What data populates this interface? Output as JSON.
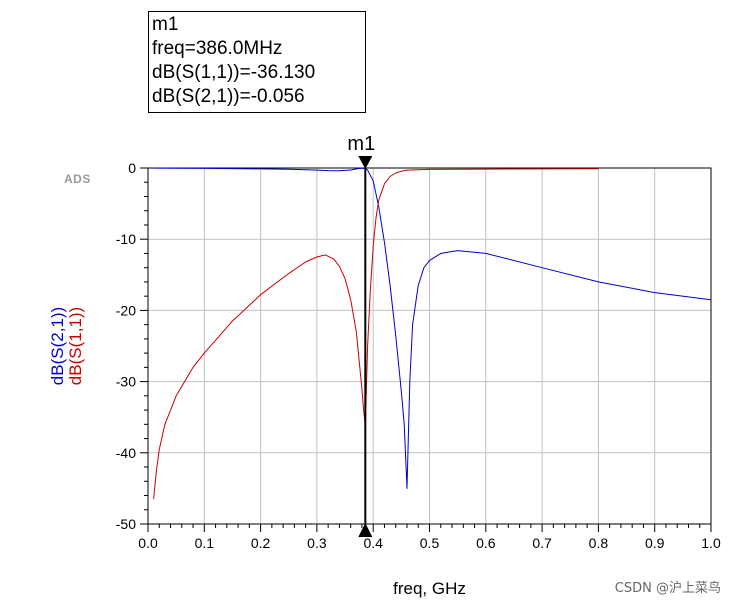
{
  "marker_box": {
    "name": "m1",
    "freq_line": "freq=386.0MHz",
    "s11_line": "dB(S(1,1))=-36.130",
    "s21_line": "dB(S(2,1))=-0.056"
  },
  "logo": "ADS",
  "watermark": "CSDN @沪上菜鸟",
  "colors": {
    "s21": "#0000c8",
    "s11": "#c80000",
    "grid": "#c0c0c0"
  },
  "chart_data": {
    "type": "line",
    "xlabel": "freq, GHz",
    "ylabel_series": [
      "dB(S(2,1))",
      "dB(S(1,1))"
    ],
    "xlim": [
      0,
      1.0
    ],
    "ylim": [
      -50,
      0
    ],
    "x_ticks": [
      0.0,
      0.1,
      0.2,
      0.3,
      0.4,
      0.5,
      0.6,
      0.7,
      0.8,
      0.9,
      1.0
    ],
    "x_tick_labels": [
      "0.0",
      "0.1",
      "0.2",
      "0.3",
      "0.4",
      "0.5",
      "0.6",
      "0.7",
      "0.8",
      "0.9",
      "1.0"
    ],
    "y_ticks": [
      0,
      -10,
      -20,
      -30,
      -40,
      -50
    ],
    "y_tick_labels": [
      "0",
      "-10",
      "-20",
      "-30",
      "-40",
      "-50"
    ],
    "marker": {
      "label": "m1",
      "x": 0.386
    },
    "series": [
      {
        "name": "dB(S(2,1))",
        "color": "#0000c8",
        "x": [
          0.01,
          0.05,
          0.1,
          0.15,
          0.2,
          0.25,
          0.28,
          0.3,
          0.32,
          0.34,
          0.36,
          0.37,
          0.38,
          0.386,
          0.39,
          0.4,
          0.41,
          0.42,
          0.43,
          0.44,
          0.45,
          0.455,
          0.46,
          0.465,
          0.47,
          0.48,
          0.49,
          0.5,
          0.52,
          0.55,
          0.6,
          0.7,
          0.8,
          0.9,
          1.0
        ],
        "values": [
          -0.02,
          -0.04,
          -0.06,
          -0.09,
          -0.12,
          -0.18,
          -0.24,
          -0.3,
          -0.36,
          -0.4,
          -0.28,
          -0.12,
          -0.03,
          -0.056,
          -0.3,
          -1.8,
          -5.5,
          -10.5,
          -16.5,
          -23.5,
          -31.5,
          -36.0,
          -45.0,
          -30.0,
          -22.0,
          -16.5,
          -14.0,
          -13.0,
          -12.0,
          -11.6,
          -12.0,
          -14.0,
          -16.0,
          -17.5,
          -18.5
        ]
      },
      {
        "name": "dB(S(1,1))",
        "color": "#c80000",
        "x": [
          0.01,
          0.015,
          0.02,
          0.03,
          0.05,
          0.08,
          0.1,
          0.15,
          0.2,
          0.25,
          0.28,
          0.3,
          0.315,
          0.33,
          0.34,
          0.35,
          0.36,
          0.37,
          0.375,
          0.38,
          0.383,
          0.386,
          0.39,
          0.395,
          0.4,
          0.405,
          0.41,
          0.42,
          0.43,
          0.44,
          0.45,
          0.46,
          0.5,
          0.6,
          0.7,
          0.8
        ],
        "values": [
          -46.5,
          -42.5,
          -39.5,
          -36.0,
          -32.0,
          -28.0,
          -26.0,
          -21.5,
          -17.8,
          -14.8,
          -13.2,
          -12.5,
          -12.2,
          -12.8,
          -13.8,
          -15.5,
          -18.5,
          -23.0,
          -27.0,
          -31.0,
          -34.0,
          -36.13,
          -25.0,
          -17.0,
          -11.0,
          -7.0,
          -4.5,
          -2.2,
          -1.2,
          -0.7,
          -0.45,
          -0.3,
          -0.2,
          -0.15,
          -0.12,
          -0.1
        ]
      }
    ]
  }
}
